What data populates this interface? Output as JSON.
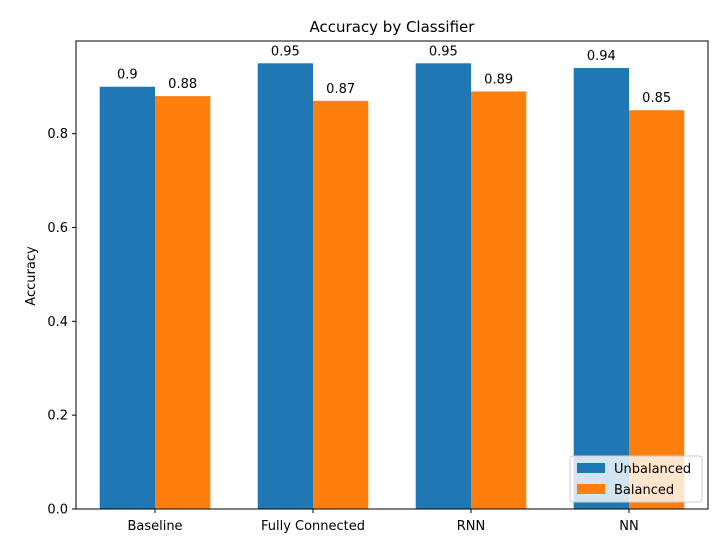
{
  "chart_data": {
    "type": "bar",
    "title": "Accuracy by Classifier",
    "xlabel": "",
    "ylabel": "Accuracy",
    "categories": [
      "Baseline",
      "Fully Connected",
      "RNN",
      "NN"
    ],
    "series": [
      {
        "name": "Unbalanced",
        "values": [
          0.9,
          0.95,
          0.95,
          0.94
        ],
        "color": "#1f77b4"
      },
      {
        "name": "Balanced",
        "values": [
          0.88,
          0.87,
          0.89,
          0.85
        ],
        "color": "#ff7f0e"
      }
    ],
    "data_labels": [
      [
        "0.9",
        "0.95",
        "0.95",
        "0.94"
      ],
      [
        "0.88",
        "0.87",
        "0.89",
        "0.85"
      ]
    ],
    "ylim": [
      0,
      0.9975
    ],
    "yticks": [
      0.0,
      0.2,
      0.4,
      0.6,
      0.8
    ],
    "ytick_labels": [
      "0.0",
      "0.2",
      "0.4",
      "0.6",
      "0.8"
    ],
    "grid": false,
    "legend_position": "bottom-right"
  }
}
